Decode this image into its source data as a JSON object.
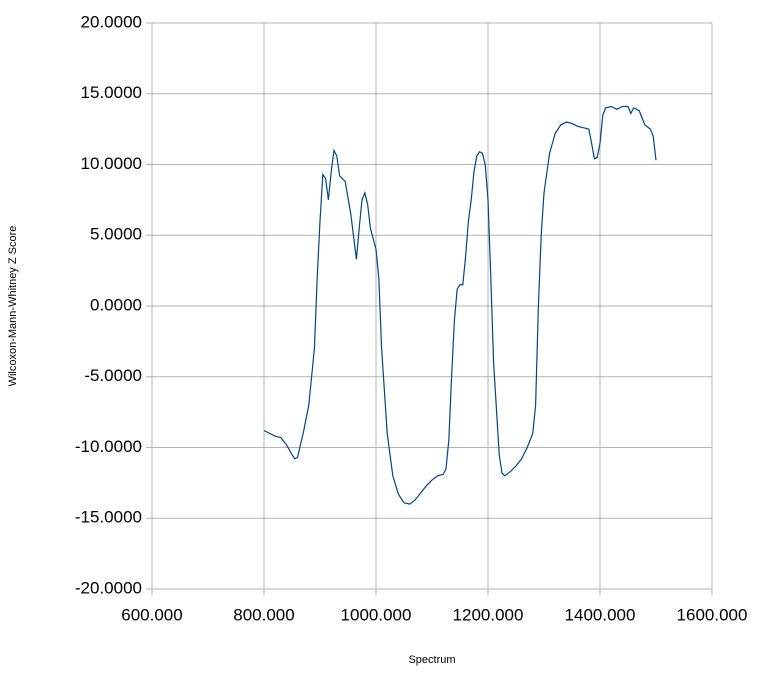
{
  "chart_data": {
    "type": "line",
    "x_label": "Spectrum",
    "y_label": "Wilcoxon-Mann-Whitney Z Score",
    "x": [
      800,
      810,
      820,
      830,
      840,
      850,
      855,
      860,
      865,
      870,
      880,
      890,
      895,
      900,
      905,
      910,
      915,
      920,
      925,
      930,
      935,
      945,
      955,
      965,
      970,
      975,
      980,
      985,
      990,
      1000,
      1005,
      1010,
      1020,
      1030,
      1040,
      1050,
      1060,
      1070,
      1080,
      1090,
      1100,
      1110,
      1120,
      1125,
      1130,
      1135,
      1140,
      1145,
      1150,
      1155,
      1160,
      1165,
      1170,
      1175,
      1180,
      1185,
      1190,
      1195,
      1200,
      1205,
      1210,
      1220,
      1225,
      1230,
      1240,
      1250,
      1260,
      1270,
      1280,
      1285,
      1290,
      1295,
      1300,
      1310,
      1320,
      1330,
      1340,
      1350,
      1360,
      1370,
      1380,
      1385,
      1390,
      1395,
      1400,
      1405,
      1410,
      1420,
      1430,
      1440,
      1450,
      1455,
      1460,
      1470,
      1480,
      1490,
      1495,
      1500
    ],
    "series": [
      {
        "name": "Z Score",
        "color": "#004586",
        "values": [
          -8.8,
          -9.0,
          -9.2,
          -9.3,
          -9.8,
          -10.5,
          -10.8,
          -10.7,
          -9.8,
          -9.0,
          -7.0,
          -3.0,
          2.0,
          6.0,
          9.3,
          9.0,
          7.5,
          9.5,
          11.0,
          10.6,
          9.2,
          8.8,
          6.5,
          3.3,
          5.5,
          7.5,
          8.0,
          7.2,
          5.5,
          4.0,
          2.0,
          -3.0,
          -9.0,
          -12.0,
          -13.3,
          -13.9,
          -14.0,
          -13.7,
          -13.2,
          -12.7,
          -12.3,
          -12.0,
          -11.9,
          -11.5,
          -9.5,
          -5.0,
          -1.0,
          1.2,
          1.5,
          1.5,
          3.5,
          6.0,
          7.5,
          9.5,
          10.6,
          10.9,
          10.8,
          10.0,
          7.5,
          2.0,
          -4.0,
          -10.5,
          -11.8,
          -12.0,
          -11.7,
          -11.3,
          -10.8,
          -10.0,
          -9.0,
          -7.0,
          0.0,
          5.0,
          8.0,
          10.8,
          12.2,
          12.8,
          13.0,
          12.9,
          12.7,
          12.6,
          12.5,
          11.5,
          10.4,
          10.5,
          11.5,
          13.5,
          14.0,
          14.1,
          13.9,
          14.1,
          14.1,
          13.6,
          14.0,
          13.8,
          12.8,
          12.5,
          12.0,
          10.3
        ]
      }
    ],
    "xlim": [
      600,
      1600
    ],
    "ylim": [
      -20,
      20
    ],
    "xticks": [
      {
        "value": 600,
        "label": "600.000"
      },
      {
        "value": 800,
        "label": "800.000"
      },
      {
        "value": 1000,
        "label": "1000.000"
      },
      {
        "value": 1200,
        "label": "1200.000"
      },
      {
        "value": 1400,
        "label": "1400.000"
      },
      {
        "value": 1600,
        "label": "1600.000"
      }
    ],
    "yticks": [
      {
        "value": -20,
        "label": "-20.0000"
      },
      {
        "value": -15,
        "label": "-15.0000"
      },
      {
        "value": -10,
        "label": "-10.0000"
      },
      {
        "value": -5,
        "label": "-5.0000"
      },
      {
        "value": 0,
        "label": "0.0000"
      },
      {
        "value": 5,
        "label": "5.0000"
      },
      {
        "value": 10,
        "label": "10.0000"
      },
      {
        "value": 15,
        "label": "15.0000"
      },
      {
        "value": 20,
        "label": "20.0000"
      }
    ],
    "grid": true
  }
}
